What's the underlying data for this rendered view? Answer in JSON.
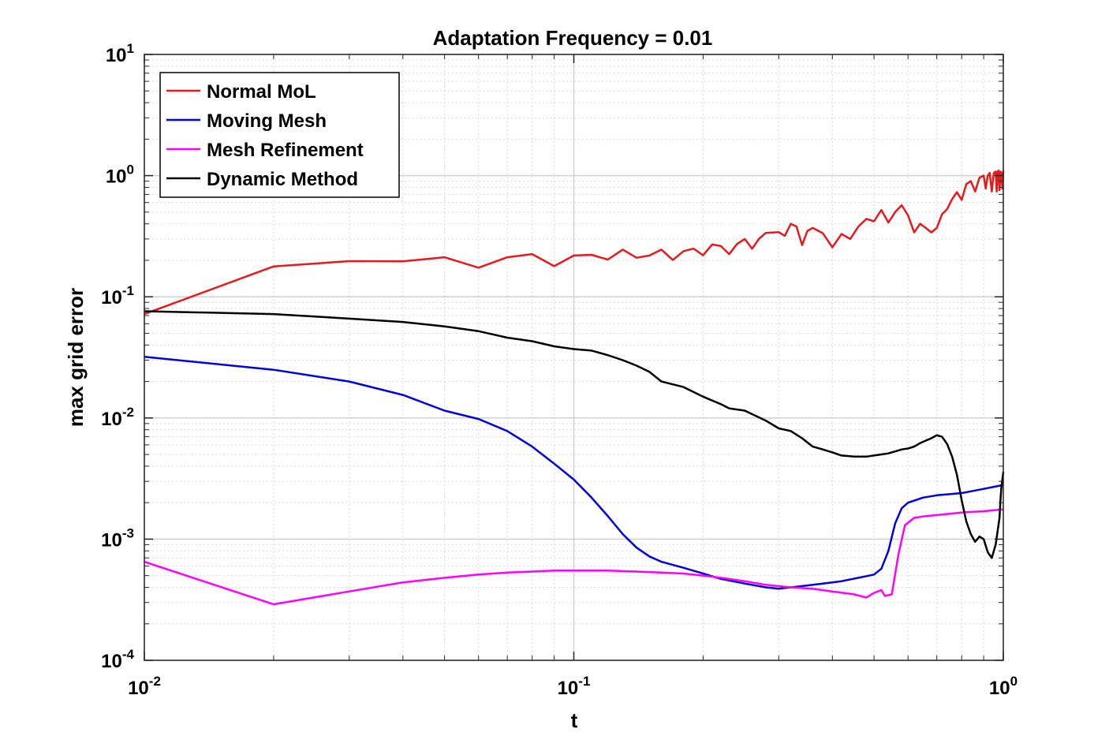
{
  "chart_data": {
    "type": "line",
    "title": "Adaptation Frequency = 0.01",
    "xlabel": "t",
    "ylabel": "max grid error",
    "xscale": "log",
    "yscale": "log",
    "xlim": [
      0.01,
      1
    ],
    "ylim": [
      0.0001,
      10
    ],
    "grid": true,
    "minor_grid": true,
    "legend_position": "top-left",
    "xticks": [
      {
        "value": 0.01,
        "base": "10",
        "exp": "-2"
      },
      {
        "value": 0.1,
        "base": "10",
        "exp": "-1"
      },
      {
        "value": 1,
        "base": "10",
        "exp": "0"
      }
    ],
    "yticks": [
      {
        "value": 0.0001,
        "base": "10",
        "exp": "-4"
      },
      {
        "value": 0.001,
        "base": "10",
        "exp": "-3"
      },
      {
        "value": 0.01,
        "base": "10",
        "exp": "-2"
      },
      {
        "value": 0.1,
        "base": "10",
        "exp": "-1"
      },
      {
        "value": 1,
        "base": "10",
        "exp": "0"
      },
      {
        "value": 10,
        "base": "10",
        "exp": "1"
      }
    ],
    "series": [
      {
        "name": "Normal MoL",
        "color": "#e41a1c",
        "points": [
          [
            0.01,
            0.072
          ],
          [
            0.02,
            0.178
          ],
          [
            0.03,
            0.197
          ],
          [
            0.04,
            0.196
          ],
          [
            0.05,
            0.212
          ],
          [
            0.06,
            0.174
          ],
          [
            0.07,
            0.212
          ],
          [
            0.08,
            0.225
          ],
          [
            0.09,
            0.179
          ],
          [
            0.1,
            0.219
          ],
          [
            0.11,
            0.222
          ],
          [
            0.12,
            0.203
          ],
          [
            0.13,
            0.245
          ],
          [
            0.14,
            0.21
          ],
          [
            0.15,
            0.219
          ],
          [
            0.16,
            0.245
          ],
          [
            0.17,
            0.201
          ],
          [
            0.18,
            0.238
          ],
          [
            0.19,
            0.25
          ],
          [
            0.2,
            0.22
          ],
          [
            0.21,
            0.27
          ],
          [
            0.22,
            0.262
          ],
          [
            0.23,
            0.225
          ],
          [
            0.24,
            0.273
          ],
          [
            0.25,
            0.3
          ],
          [
            0.26,
            0.249
          ],
          [
            0.27,
            0.302
          ],
          [
            0.28,
            0.337
          ],
          [
            0.3,
            0.342
          ],
          [
            0.31,
            0.318
          ],
          [
            0.32,
            0.4
          ],
          [
            0.33,
            0.38
          ],
          [
            0.34,
            0.267
          ],
          [
            0.35,
            0.35
          ],
          [
            0.36,
            0.37
          ],
          [
            0.38,
            0.335
          ],
          [
            0.4,
            0.256
          ],
          [
            0.42,
            0.33
          ],
          [
            0.44,
            0.3
          ],
          [
            0.46,
            0.38
          ],
          [
            0.48,
            0.44
          ],
          [
            0.5,
            0.42
          ],
          [
            0.52,
            0.52
          ],
          [
            0.54,
            0.41
          ],
          [
            0.56,
            0.5
          ],
          [
            0.58,
            0.57
          ],
          [
            0.6,
            0.47
          ],
          [
            0.62,
            0.34
          ],
          [
            0.64,
            0.4
          ],
          [
            0.66,
            0.37
          ],
          [
            0.68,
            0.34
          ],
          [
            0.7,
            0.37
          ],
          [
            0.72,
            0.48
          ],
          [
            0.74,
            0.53
          ],
          [
            0.76,
            0.64
          ],
          [
            0.78,
            0.73
          ],
          [
            0.8,
            0.63
          ],
          [
            0.82,
            0.85
          ],
          [
            0.84,
            0.9
          ],
          [
            0.86,
            0.74
          ],
          [
            0.88,
            0.96
          ],
          [
            0.9,
            1.0
          ],
          [
            0.91,
            0.78
          ],
          [
            0.92,
            1.0
          ],
          [
            0.93,
            1.05
          ],
          [
            0.94,
            0.74
          ],
          [
            0.95,
            1.05
          ],
          [
            0.96,
            1.08
          ],
          [
            0.965,
            0.74
          ],
          [
            0.97,
            1.08
          ],
          [
            0.975,
            1.1
          ],
          [
            0.98,
            0.76
          ],
          [
            0.985,
            1.08
          ],
          [
            0.99,
            1.05
          ],
          [
            0.995,
            0.78
          ],
          [
            1.0,
            1.1
          ]
        ]
      },
      {
        "name": "Moving Mesh",
        "color": "#0000dd",
        "points": [
          [
            0.01,
            0.032
          ],
          [
            0.02,
            0.025
          ],
          [
            0.03,
            0.02
          ],
          [
            0.04,
            0.0155
          ],
          [
            0.05,
            0.0115
          ],
          [
            0.06,
            0.0098
          ],
          [
            0.07,
            0.0078
          ],
          [
            0.08,
            0.0058
          ],
          [
            0.09,
            0.0042
          ],
          [
            0.1,
            0.0031
          ],
          [
            0.11,
            0.0022
          ],
          [
            0.12,
            0.00155
          ],
          [
            0.13,
            0.0011
          ],
          [
            0.14,
            0.00085
          ],
          [
            0.15,
            0.00072
          ],
          [
            0.16,
            0.00065
          ],
          [
            0.18,
            0.00058
          ],
          [
            0.2,
            0.00052
          ],
          [
            0.22,
            0.00047
          ],
          [
            0.25,
            0.00043
          ],
          [
            0.28,
            0.0004
          ],
          [
            0.3,
            0.00039
          ],
          [
            0.34,
            0.00041
          ],
          [
            0.38,
            0.00043
          ],
          [
            0.42,
            0.00045
          ],
          [
            0.46,
            0.00048
          ],
          [
            0.5,
            0.00051
          ],
          [
            0.52,
            0.00057
          ],
          [
            0.54,
            0.0008
          ],
          [
            0.56,
            0.00135
          ],
          [
            0.58,
            0.0018
          ],
          [
            0.6,
            0.002
          ],
          [
            0.65,
            0.0022
          ],
          [
            0.7,
            0.0023
          ],
          [
            0.75,
            0.00235
          ],
          [
            0.8,
            0.0024
          ],
          [
            0.85,
            0.0025
          ],
          [
            0.9,
            0.0026
          ],
          [
            0.95,
            0.0027
          ],
          [
            1.0,
            0.0028
          ]
        ]
      },
      {
        "name": "Mesh Refinement",
        "color": "#ff00ff",
        "points": [
          [
            0.01,
            0.00065
          ],
          [
            0.02,
            0.00029
          ],
          [
            0.03,
            0.00037
          ],
          [
            0.04,
            0.00044
          ],
          [
            0.05,
            0.00048
          ],
          [
            0.06,
            0.00051
          ],
          [
            0.07,
            0.00053
          ],
          [
            0.08,
            0.00054
          ],
          [
            0.09,
            0.00055
          ],
          [
            0.1,
            0.00055
          ],
          [
            0.11,
            0.00055
          ],
          [
            0.12,
            0.00055
          ],
          [
            0.14,
            0.00054
          ],
          [
            0.16,
            0.00053
          ],
          [
            0.18,
            0.00052
          ],
          [
            0.2,
            0.0005
          ],
          [
            0.22,
            0.00048
          ],
          [
            0.25,
            0.00045
          ],
          [
            0.28,
            0.00042
          ],
          [
            0.32,
            0.0004
          ],
          [
            0.36,
            0.00039
          ],
          [
            0.4,
            0.00037
          ],
          [
            0.45,
            0.00035
          ],
          [
            0.48,
            0.00033
          ],
          [
            0.5,
            0.00036
          ],
          [
            0.52,
            0.00038
          ],
          [
            0.53,
            0.00034
          ],
          [
            0.55,
            0.00035
          ],
          [
            0.57,
            0.00075
          ],
          [
            0.59,
            0.0013
          ],
          [
            0.62,
            0.0015
          ],
          [
            0.66,
            0.00155
          ],
          [
            0.7,
            0.00158
          ],
          [
            0.75,
            0.00162
          ],
          [
            0.8,
            0.00166
          ],
          [
            0.85,
            0.00168
          ],
          [
            0.9,
            0.0017
          ],
          [
            0.95,
            0.00173
          ],
          [
            1.0,
            0.00176
          ]
        ]
      },
      {
        "name": "Dynamic Method",
        "color": "#000000",
        "points": [
          [
            0.01,
            0.076
          ],
          [
            0.02,
            0.072
          ],
          [
            0.03,
            0.066
          ],
          [
            0.04,
            0.062
          ],
          [
            0.05,
            0.057
          ],
          [
            0.06,
            0.052
          ],
          [
            0.07,
            0.046
          ],
          [
            0.08,
            0.043
          ],
          [
            0.09,
            0.039
          ],
          [
            0.1,
            0.037
          ],
          [
            0.11,
            0.036
          ],
          [
            0.12,
            0.033
          ],
          [
            0.13,
            0.03
          ],
          [
            0.14,
            0.027
          ],
          [
            0.15,
            0.024
          ],
          [
            0.16,
            0.02
          ],
          [
            0.18,
            0.018
          ],
          [
            0.2,
            0.015
          ],
          [
            0.22,
            0.013
          ],
          [
            0.23,
            0.012
          ],
          [
            0.25,
            0.0115
          ],
          [
            0.28,
            0.0095
          ],
          [
            0.3,
            0.0082
          ],
          [
            0.32,
            0.0078
          ],
          [
            0.34,
            0.0068
          ],
          [
            0.36,
            0.0058
          ],
          [
            0.38,
            0.0055
          ],
          [
            0.4,
            0.0052
          ],
          [
            0.42,
            0.0049
          ],
          [
            0.45,
            0.0048
          ],
          [
            0.48,
            0.0048
          ],
          [
            0.5,
            0.0049
          ],
          [
            0.52,
            0.005
          ],
          [
            0.54,
            0.0051
          ],
          [
            0.56,
            0.0053
          ],
          [
            0.58,
            0.0055
          ],
          [
            0.6,
            0.0056
          ],
          [
            0.62,
            0.0058
          ],
          [
            0.64,
            0.0062
          ],
          [
            0.66,
            0.0065
          ],
          [
            0.68,
            0.0068
          ],
          [
            0.7,
            0.0072
          ],
          [
            0.72,
            0.007
          ],
          [
            0.74,
            0.0061
          ],
          [
            0.76,
            0.0048
          ],
          [
            0.78,
            0.0034
          ],
          [
            0.8,
            0.0021
          ],
          [
            0.82,
            0.0014
          ],
          [
            0.84,
            0.0011
          ],
          [
            0.86,
            0.00095
          ],
          [
            0.88,
            0.00105
          ],
          [
            0.9,
            0.001
          ],
          [
            0.92,
            0.00078
          ],
          [
            0.94,
            0.0007
          ],
          [
            0.96,
            0.0009
          ],
          [
            0.98,
            0.0015
          ],
          [
            0.985,
            0.0021
          ],
          [
            0.99,
            0.0027
          ],
          [
            0.995,
            0.0031
          ],
          [
            1.0,
            0.0036
          ]
        ]
      }
    ]
  }
}
